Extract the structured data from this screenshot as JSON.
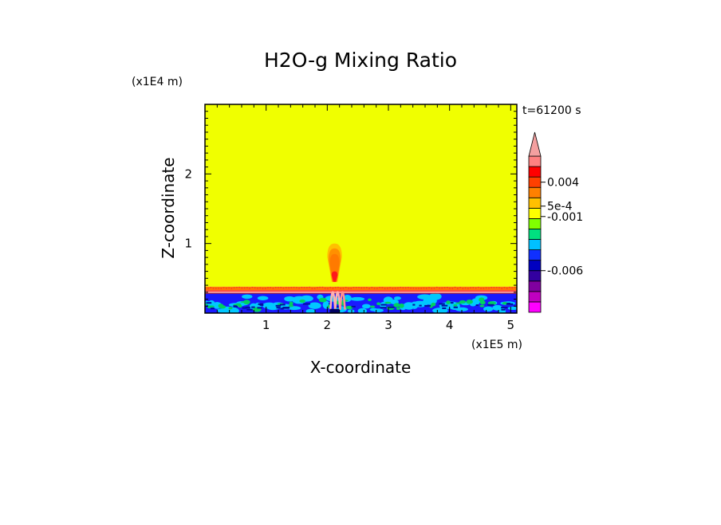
{
  "chart_data": {
    "type": "heatmap",
    "title": "H2O-g Mixing Ratio",
    "xlabel": "X-coordinate",
    "ylabel": "Z-coordinate",
    "x_scale_label": "(x1E5 m)",
    "y_scale_label": "(x1E4 m)",
    "time_label": "t=61200 s",
    "xlim": [
      0,
      5.1
    ],
    "ylim": [
      0,
      3.0
    ],
    "x_ticks": [
      {
        "value": 1,
        "label": "1"
      },
      {
        "value": 2,
        "label": "2"
      },
      {
        "value": 3,
        "label": "3"
      },
      {
        "value": 4,
        "label": "4"
      },
      {
        "value": 5,
        "label": "5"
      }
    ],
    "y_ticks": [
      {
        "value": 1,
        "label": "1"
      },
      {
        "value": 2,
        "label": "2"
      }
    ],
    "background_color": "#f0ff00",
    "regions": [
      {
        "name": "upper-layer",
        "color": "#f0ff00",
        "z_range": [
          0.38,
          3.0
        ]
      },
      {
        "name": "boundary-band-orange",
        "color": "#ff7a00",
        "z_range": [
          0.32,
          0.38
        ]
      },
      {
        "name": "boundary-band-red",
        "color": "#ff4040",
        "z_range": [
          0.3,
          0.33
        ]
      },
      {
        "name": "lower-layer-blue",
        "color": "#1a1aff",
        "z_range": [
          0.0,
          0.28
        ]
      },
      {
        "name": "lower-layer-cyan-patches",
        "color": "#00c8ff",
        "z_range": [
          0.02,
          0.24
        ]
      },
      {
        "name": "lower-layer-green-patches",
        "color": "#00d060",
        "z_range": [
          0.05,
          0.2
        ]
      },
      {
        "name": "plume",
        "color": "#ff7a00",
        "x_center": 2.12,
        "z_range": [
          0.3,
          1.0
        ]
      }
    ],
    "colorbar": {
      "levels": [
        {
          "color": "#ff00ff"
        },
        {
          "color": "#c000c0"
        },
        {
          "color": "#8000a0"
        },
        {
          "color": "#3300a0"
        },
        {
          "color": "#0000c0"
        },
        {
          "color": "#1030ff"
        },
        {
          "color": "#00c0ff"
        },
        {
          "color": "#00e080"
        },
        {
          "color": "#80ff00"
        },
        {
          "color": "#ffff00"
        },
        {
          "color": "#ffc000"
        },
        {
          "color": "#ff8000"
        },
        {
          "color": "#ff4000"
        },
        {
          "color": "#ff0000"
        },
        {
          "color": "#ff8080"
        }
      ],
      "labels": [
        {
          "text": "0.004",
          "level": 12.5
        },
        {
          "text": "5e-4",
          "level": 10.2
        },
        {
          "text": "-0.001",
          "level": 9.2
        },
        {
          "text": "-0.006",
          "level": 4.0
        }
      ],
      "arrow_color": "#f4a0a0"
    }
  }
}
